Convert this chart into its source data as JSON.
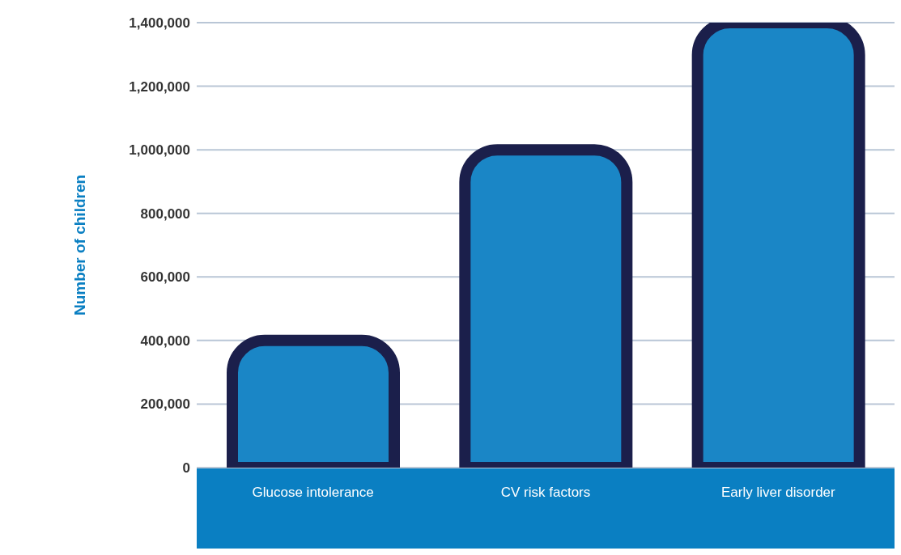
{
  "chart_data": {
    "type": "bar",
    "ylabel": "Number of children",
    "categories": [
      "Glucose intolerance",
      "CV risk factors",
      "Early liver disorder"
    ],
    "values": [
      400000,
      1000000,
      1400000
    ],
    "color": "#1a86c6",
    "ylim": [
      0,
      1400000
    ],
    "yticks": [
      {
        "value": 0,
        "label": "0"
      },
      {
        "value": 200000,
        "label": "200,000"
      },
      {
        "value": 400000,
        "label": "400,000"
      },
      {
        "value": 600000,
        "label": "600,000"
      },
      {
        "value": 800000,
        "label": "800,000"
      },
      {
        "value": 1000000,
        "label": "1,000,000"
      },
      {
        "value": 1200000,
        "label": "1,200,000"
      },
      {
        "value": 1400000,
        "label": "1,400,000"
      }
    ],
    "grid": "y"
  }
}
